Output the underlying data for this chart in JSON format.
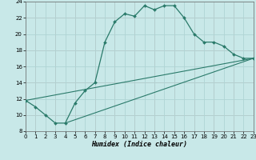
{
  "xlabel": "Humidex (Indice chaleur)",
  "bg_color": "#c8e8e8",
  "grid_color": "#b0d4d4",
  "line_color": "#2a7a6a",
  "marker_color": "#2a7a6a",
  "xlim": [
    0,
    23
  ],
  "ylim": [
    8,
    24
  ],
  "xticks": [
    0,
    1,
    2,
    3,
    4,
    5,
    6,
    7,
    8,
    9,
    10,
    11,
    12,
    13,
    14,
    15,
    16,
    17,
    18,
    19,
    20,
    21,
    22,
    23
  ],
  "yticks": [
    8,
    10,
    12,
    14,
    16,
    18,
    20,
    22,
    24
  ],
  "line1_x": [
    0,
    1,
    2,
    3,
    4,
    5,
    6,
    7,
    8,
    9,
    10,
    11,
    12,
    13,
    14,
    15,
    16,
    17,
    18,
    19,
    20,
    21,
    22,
    23
  ],
  "line1_y": [
    11.8,
    11.0,
    10.0,
    9.0,
    9.0,
    11.5,
    13.0,
    14.0,
    19.0,
    21.5,
    22.5,
    22.2,
    23.5,
    23.0,
    23.5,
    23.5,
    22.0,
    20.0,
    19.0,
    19.0,
    18.5,
    17.5,
    17.0,
    17.0
  ],
  "line2_x": [
    0,
    23
  ],
  "line2_y": [
    11.8,
    17.0
  ],
  "line3_x": [
    4,
    23
  ],
  "line3_y": [
    9.0,
    17.0
  ]
}
